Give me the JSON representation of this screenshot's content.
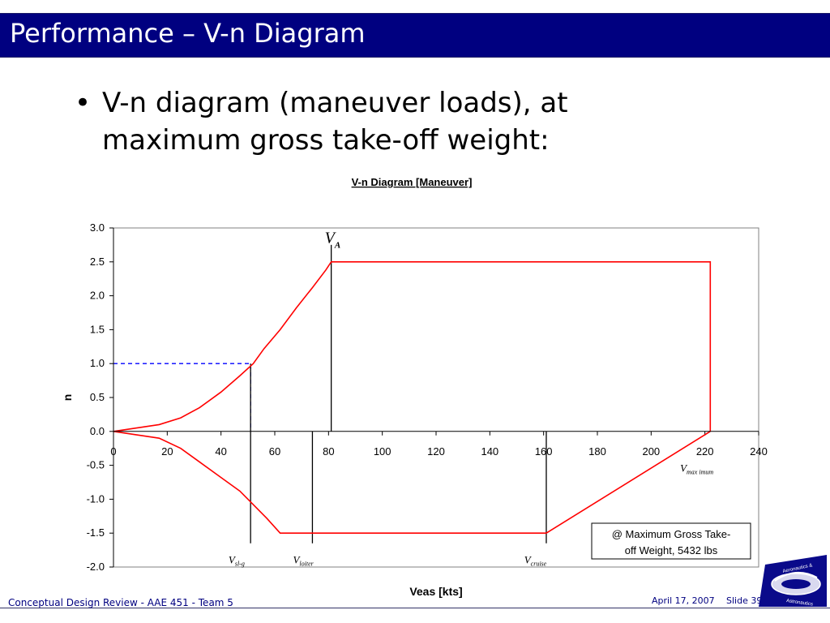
{
  "slide": {
    "title": "Performance – V-n Diagram",
    "bullet": "V-n diagram (maneuver loads), at maximum gross take-off weight:"
  },
  "footer": {
    "left": "Conceptual Design Review - AAE 451 - Team 5",
    "date": "April 17, 2007",
    "slide": "Slide 39"
  },
  "logo": {
    "text_top": "Aeronautics &",
    "text_bottom": "Astronautics"
  },
  "colors": {
    "title_bar": "#000080",
    "envelope": "#ff0000",
    "stall_guide": "#0000ff",
    "axis": "#000000",
    "footer_text": "#000080"
  },
  "chart_data": {
    "type": "line",
    "title": "V-n Diagram [Maneuver]",
    "xlabel": "Veas [kts]",
    "ylabel": "n",
    "xlim": [
      0,
      240
    ],
    "ylim": [
      -2.0,
      3.0
    ],
    "xticks": [
      "0",
      "20",
      "40",
      "60",
      "80",
      "100",
      "120",
      "140",
      "160",
      "180",
      "200",
      "220",
      "240"
    ],
    "yticks": [
      "-2.0",
      "-1.5",
      "-1.0",
      "-0.5",
      "0.0",
      "0.5",
      "1.0",
      "1.5",
      "2.0",
      "2.5",
      "3.0"
    ],
    "grid": false,
    "series": [
      {
        "color": "#ff0000",
        "points": [
          [
            0,
            0
          ],
          [
            17,
            0.1
          ],
          [
            25,
            0.2
          ],
          [
            32,
            0.35
          ],
          [
            40,
            0.58
          ],
          [
            47,
            0.82
          ],
          [
            52,
            1.0
          ],
          [
            56,
            1.22
          ],
          [
            62,
            1.5
          ],
          [
            68,
            1.82
          ],
          [
            74,
            2.12
          ],
          [
            79,
            2.38
          ],
          [
            81,
            2.5
          ],
          [
            222,
            2.5
          ],
          [
            222,
            0
          ]
        ]
      },
      {
        "color": "#ff0000",
        "points": [
          [
            0,
            0
          ],
          [
            17,
            -0.1
          ],
          [
            25,
            -0.25
          ],
          [
            32,
            -0.45
          ],
          [
            40,
            -0.68
          ],
          [
            47,
            -0.88
          ],
          [
            52,
            -1.08
          ],
          [
            57,
            -1.28
          ],
          [
            62,
            -1.5
          ],
          [
            161,
            -1.5
          ],
          [
            222,
            0
          ]
        ]
      }
    ],
    "guides": [
      {
        "color": "#0000ff",
        "dashed": true,
        "points": [
          [
            0,
            1.0
          ],
          [
            51,
            1.0
          ],
          [
            51,
            0
          ]
        ]
      }
    ],
    "vertical_markers": [
      {
        "x": 81,
        "y_from": 0,
        "y_to": 2.75
      },
      {
        "x": 51,
        "y_from": 1.0,
        "y_to": -1.65
      },
      {
        "x": 74,
        "y_from": 0,
        "y_to": -1.65
      },
      {
        "x": 161,
        "y_from": 0,
        "y_to": -1.65
      }
    ],
    "annotations": [
      {
        "main": "V",
        "sub": "A",
        "x": 81,
        "y": 2.78
      },
      {
        "main": "V",
        "sub": "max imum",
        "x": 215,
        "y": -0.5
      },
      {
        "main": "V",
        "sub": "sl-g",
        "x": 47,
        "y": -1.85
      },
      {
        "main": "V",
        "sub": "loiter",
        "x": 71,
        "y": -1.85
      },
      {
        "main": "V",
        "sub": "cruise",
        "x": 157,
        "y": -1.85
      }
    ],
    "legend_note": {
      "lines": [
        "@ Maximum Gross Take-",
        "off Weight, 5432 lbs"
      ],
      "placement": "bottom-right"
    }
  }
}
